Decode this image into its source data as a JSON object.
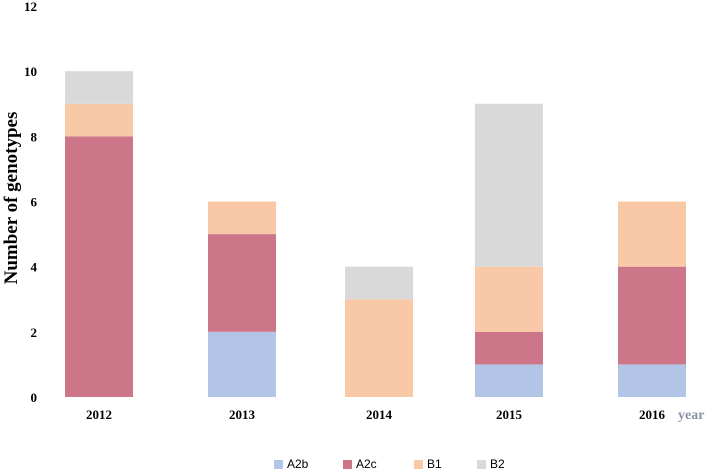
{
  "chart_data": {
    "type": "bar",
    "stacked": true,
    "categories": [
      "2012",
      "2013",
      "2014",
      "2015",
      "2016"
    ],
    "series": [
      {
        "name": "A2b",
        "color": "#b2c5e6",
        "values": [
          0,
          2,
          0,
          1,
          1
        ]
      },
      {
        "name": "A2c",
        "color": "#cd7589",
        "values": [
          8,
          3,
          0,
          1,
          3
        ]
      },
      {
        "name": "B1",
        "color": "#f9c9a7",
        "values": [
          1,
          1,
          3,
          2,
          2
        ]
      },
      {
        "name": "B2",
        "color": "#d9d9d9",
        "values": [
          1,
          0,
          1,
          5,
          0
        ]
      }
    ],
    "title": "",
    "xlabel": "year",
    "ylabel": "Number of genotypes",
    "ylim": [
      0,
      12
    ],
    "yticks": [
      "0",
      "2",
      "4",
      "6",
      "8",
      "10",
      "12"
    ],
    "grid": false,
    "legend": "bottom"
  }
}
